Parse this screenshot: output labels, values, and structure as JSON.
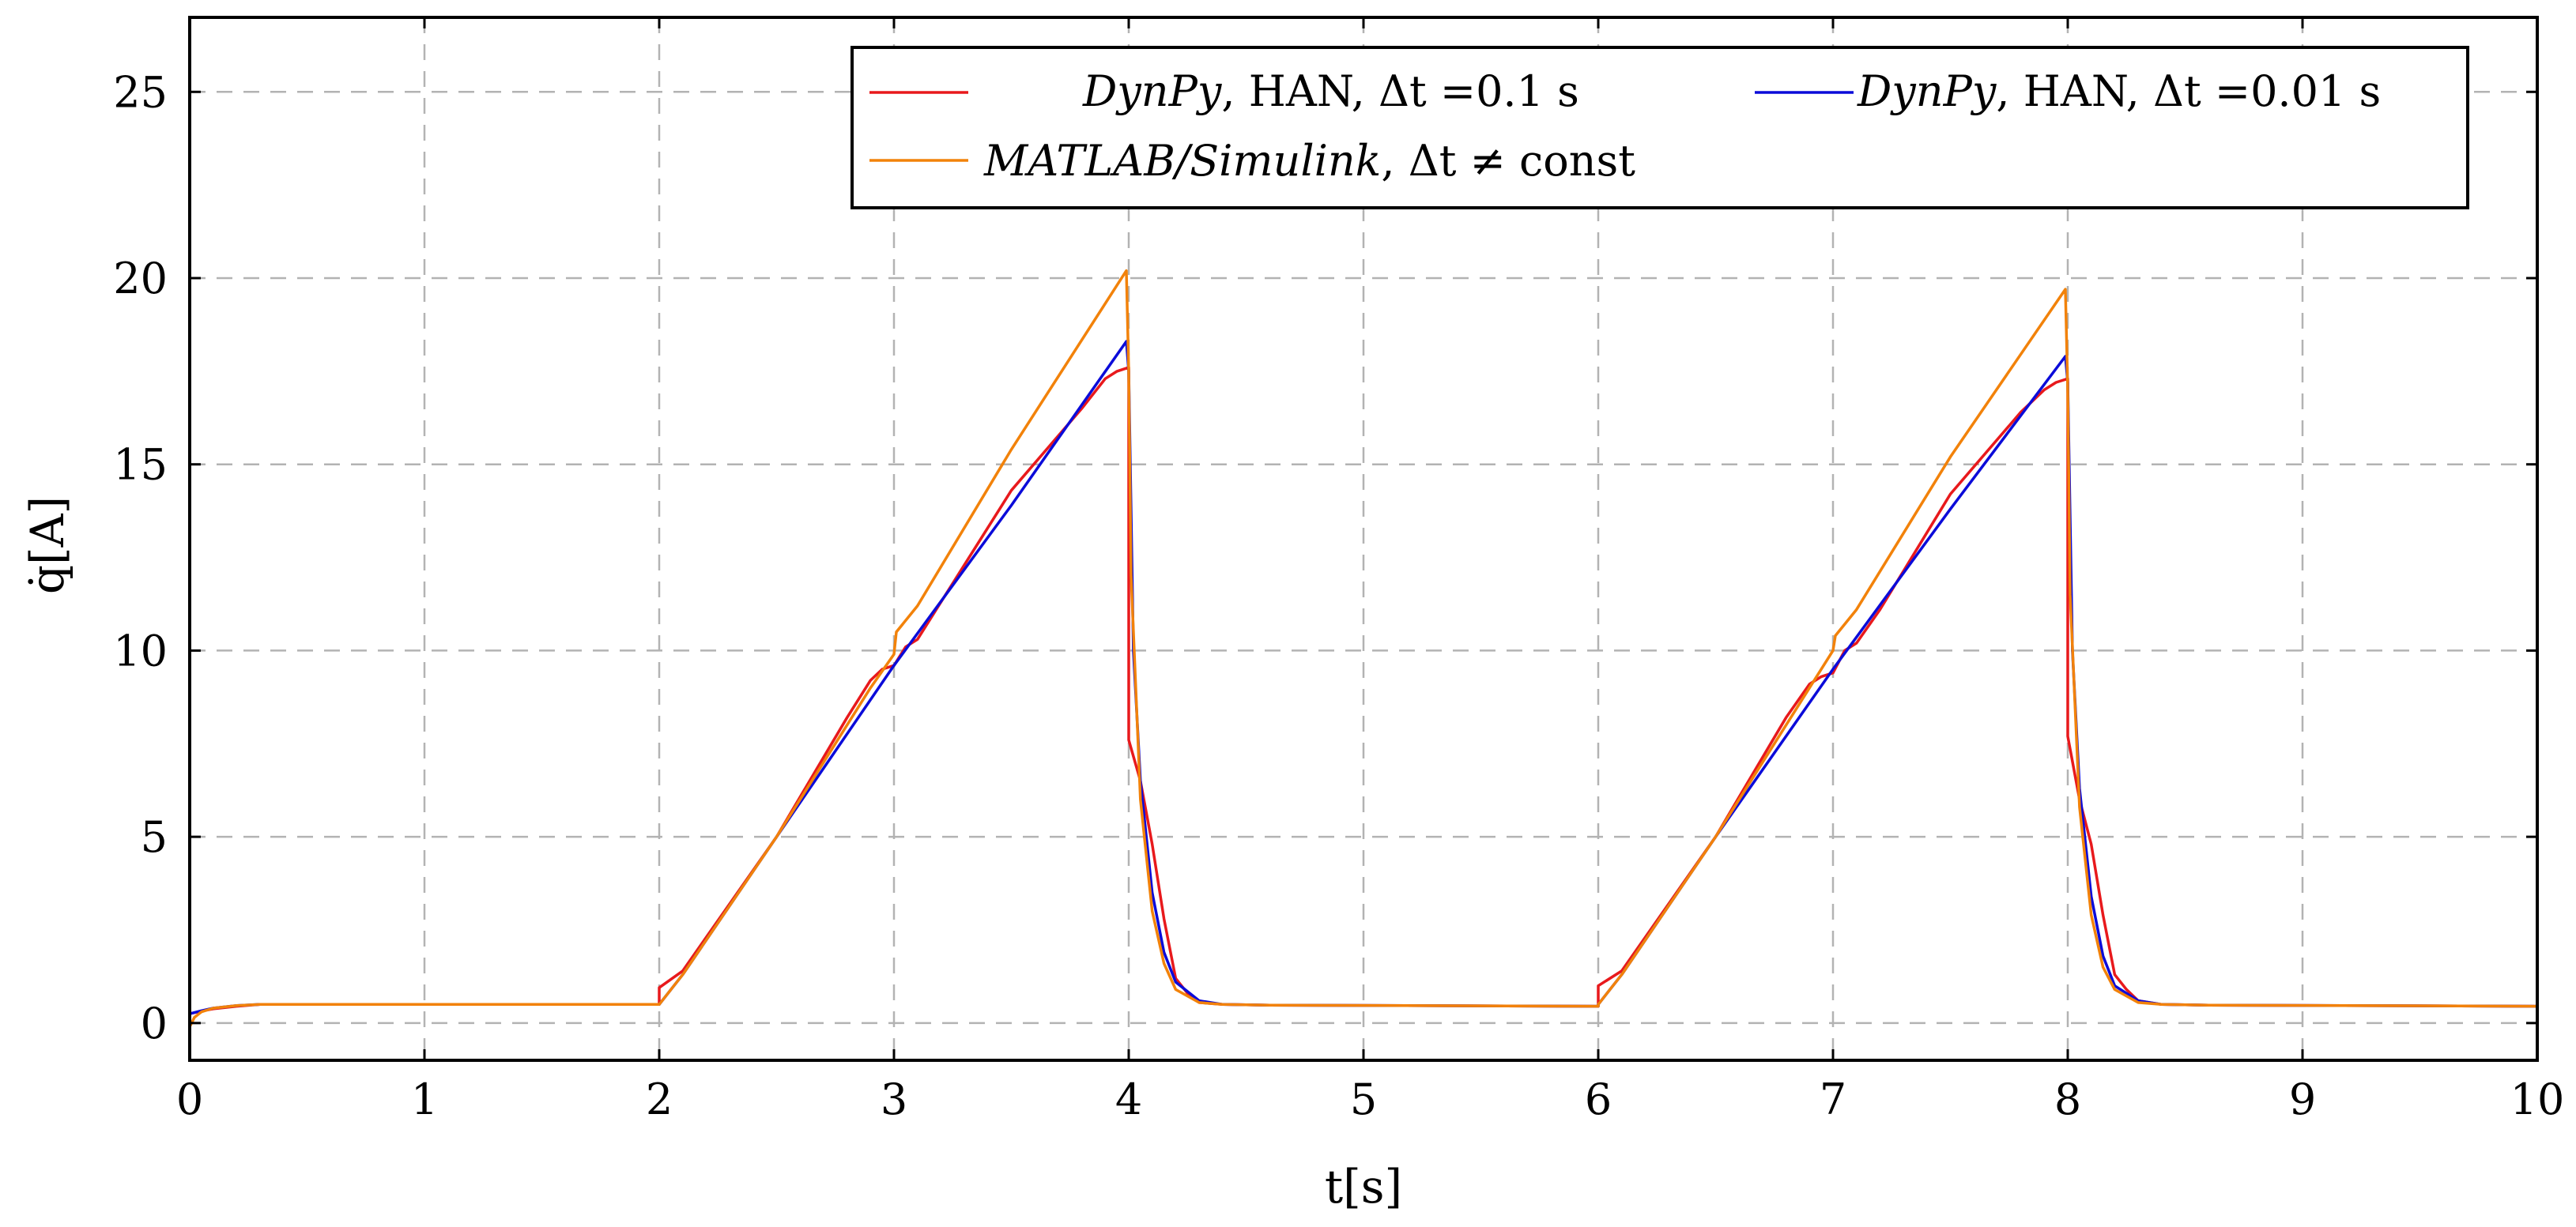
{
  "chart_data": {
    "type": "line",
    "xlabel": "t[s]",
    "ylabel": "q̇[A]",
    "xlim": [
      0,
      10
    ],
    "ylim": [
      -1,
      27
    ],
    "xticks": [
      0,
      1,
      2,
      3,
      4,
      5,
      6,
      7,
      8,
      9,
      10
    ],
    "yticks": [
      0,
      5,
      10,
      15,
      20,
      25
    ],
    "grid": true,
    "legend_position": "top-right",
    "series": [
      {
        "name": "DynPy, HAN, Δt =0.1 s",
        "legend_italic": "DynPy",
        "legend_rest": ", HAN, Δt =0.1 s",
        "color": "#e8191c",
        "x": [
          0,
          0.05,
          0.1,
          0.2,
          0.3,
          2.0,
          2.0,
          2.1,
          2.5,
          2.8,
          2.9,
          2.95,
          3.0,
          3.05,
          3.1,
          3.2,
          3.5,
          3.8,
          3.9,
          3.95,
          4.0,
          4.0,
          4.05,
          4.1,
          4.15,
          4.2,
          4.25,
          4.3,
          4.4,
          4.6,
          6.0,
          6.0,
          6.1,
          6.5,
          6.8,
          6.9,
          6.95,
          7.0,
          7.05,
          7.1,
          7.2,
          7.5,
          7.8,
          7.9,
          7.95,
          8.0,
          8.0,
          8.05,
          8.1,
          8.15,
          8.2,
          8.25,
          8.3,
          8.4,
          8.6,
          10.0
        ],
        "y": [
          0.25,
          0.32,
          0.38,
          0.45,
          0.5,
          0.5,
          0.95,
          1.4,
          5.0,
          8.2,
          9.2,
          9.5,
          9.6,
          10.1,
          10.3,
          11.3,
          14.3,
          16.5,
          17.3,
          17.5,
          17.6,
          7.6,
          6.5,
          4.8,
          2.8,
          1.2,
          0.8,
          0.55,
          0.5,
          0.48,
          0.45,
          1.0,
          1.4,
          5.0,
          8.2,
          9.1,
          9.3,
          9.4,
          10.0,
          10.2,
          11.1,
          14.2,
          16.4,
          17.0,
          17.2,
          17.3,
          7.7,
          6.0,
          4.8,
          2.9,
          1.3,
          0.9,
          0.6,
          0.5,
          0.48,
          0.45
        ]
      },
      {
        "name": "DynPy, HAN, Δt =0.01 s",
        "legend_italic": "DynPy",
        "legend_rest": ", HAN, Δt =0.01 s",
        "color": "#0b0bd9",
        "x": [
          0,
          0.05,
          0.1,
          0.2,
          0.3,
          2.0,
          2.0,
          2.1,
          2.5,
          3.0,
          3.5,
          3.99,
          4.0,
          4.02,
          4.05,
          4.1,
          4.15,
          4.2,
          4.3,
          4.4,
          4.6,
          6.0,
          6.0,
          6.1,
          6.5,
          7.0,
          7.5,
          7.99,
          8.0,
          8.02,
          8.05,
          8.1,
          8.15,
          8.2,
          8.3,
          8.4,
          8.6,
          10.0
        ],
        "y": [
          0.25,
          0.33,
          0.4,
          0.47,
          0.5,
          0.5,
          0.5,
          1.3,
          5.0,
          9.6,
          13.9,
          18.3,
          17.5,
          10.0,
          6.5,
          3.5,
          1.9,
          1.1,
          0.6,
          0.5,
          0.48,
          0.45,
          0.5,
          1.3,
          5.0,
          9.5,
          13.8,
          17.9,
          17.2,
          10.0,
          6.3,
          3.4,
          1.8,
          1.0,
          0.6,
          0.5,
          0.48,
          0.45
        ]
      },
      {
        "name": "MATLAB/Simulink, Δt ≠ const",
        "legend_italic": "MATLAB/Simulink",
        "legend_rest": ", Δt ≠ const",
        "color": "#f2820a",
        "x": [
          0,
          0.02,
          0.05,
          0.1,
          0.2,
          0.3,
          2.0,
          2.0,
          2.1,
          2.5,
          2.7,
          2.9,
          3.0,
          3.01,
          3.1,
          3.5,
          3.99,
          4.0,
          4.01,
          4.05,
          4.1,
          4.15,
          4.2,
          4.3,
          4.4,
          4.6,
          6.0,
          6.0,
          6.1,
          6.5,
          6.7,
          6.9,
          7.0,
          7.01,
          7.1,
          7.5,
          7.99,
          8.0,
          8.01,
          8.05,
          8.1,
          8.15,
          8.2,
          8.3,
          8.4,
          8.6,
          10.0
        ],
        "y": [
          -0.1,
          0.15,
          0.3,
          0.4,
          0.47,
          0.5,
          0.5,
          0.5,
          1.3,
          5.0,
          7.0,
          9.0,
          9.9,
          10.5,
          11.2,
          15.4,
          20.2,
          17.5,
          12.0,
          6.0,
          3.0,
          1.6,
          0.9,
          0.55,
          0.5,
          0.48,
          0.45,
          0.5,
          1.3,
          5.0,
          7.0,
          9.0,
          10.0,
          10.4,
          11.1,
          15.2,
          19.7,
          17.0,
          11.5,
          5.8,
          2.9,
          1.5,
          0.9,
          0.55,
          0.5,
          0.48,
          0.45
        ]
      }
    ]
  }
}
